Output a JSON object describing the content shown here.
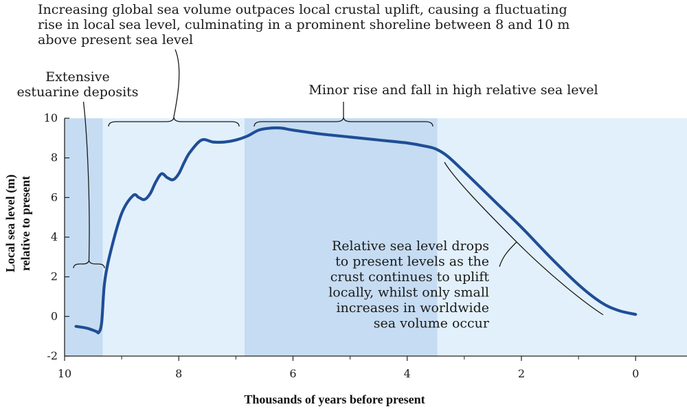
{
  "colors": {
    "band_light": "#e2f0fb",
    "band_dark": "#c6dcf2",
    "curve": "#1f4e96",
    "axis": "#222222",
    "text": "#1a1a1a"
  },
  "chart_data": {
    "type": "line",
    "xlabel": "Thousands of years before present",
    "ylabel_lines": [
      "Local sea level (m)",
      "relative to present"
    ],
    "xlim": [
      10,
      -0.9
    ],
    "ylim": [
      -2,
      10
    ],
    "x_reversed": true,
    "x_ticks": [
      10,
      8,
      6,
      4,
      2,
      0
    ],
    "x_tick_labels": [
      "10",
      "8",
      "6",
      "4",
      "2",
      "0"
    ],
    "y_ticks": [
      -2,
      0,
      2,
      4,
      6,
      8,
      10
    ],
    "y_tick_labels": [
      "-2",
      "0",
      "2",
      "4",
      "6",
      "8",
      "10"
    ],
    "bands": [
      {
        "from": 10,
        "to": 9.33,
        "shade": "dark"
      },
      {
        "from": 9.33,
        "to": 6.85,
        "shade": "light"
      },
      {
        "from": 6.85,
        "to": 3.47,
        "shade": "dark"
      },
      {
        "from": 3.47,
        "to": -0.9,
        "shade": "light"
      }
    ],
    "series": [
      {
        "x": [
          9.8,
          9.6,
          9.45,
          9.4,
          9.35,
          9.3,
          9.2,
          9.0,
          8.8,
          8.7,
          8.6,
          8.5,
          8.4,
          8.3,
          8.2,
          8.1,
          8.0,
          7.9,
          7.8,
          7.6,
          7.4,
          7.2,
          7.0,
          6.8,
          6.6,
          6.4,
          6.2,
          6.0,
          5.5,
          5.0,
          4.5,
          4.0,
          3.7,
          3.5,
          3.3,
          3.0,
          2.5,
          2.0,
          1.5,
          1.0,
          0.6,
          0.3,
          0.0
        ],
        "y": [
          -0.5,
          -0.6,
          -0.75,
          -0.8,
          -0.3,
          1.7,
          3.2,
          5.2,
          6.1,
          6.0,
          5.9,
          6.2,
          6.8,
          7.2,
          7.0,
          6.9,
          7.2,
          7.8,
          8.3,
          8.9,
          8.8,
          8.8,
          8.9,
          9.1,
          9.4,
          9.5,
          9.5,
          9.4,
          9.2,
          9.05,
          8.9,
          8.75,
          8.6,
          8.45,
          8.1,
          7.3,
          5.9,
          4.5,
          3.0,
          1.6,
          0.7,
          0.3,
          0.1
        ]
      }
    ],
    "annotations": [
      {
        "lines": [
          "Increasing global sea volume outpaces local crustal uplift, causing a fluctuating",
          "rise in local sea level, culminating in a prominent shoreline between 8 and 10 m",
          "above present sea level"
        ]
      },
      {
        "lines": [
          "Extensive",
          "estuarine deposits"
        ]
      },
      {
        "lines": [
          "Minor rise and fall in high relative sea level"
        ]
      },
      {
        "lines": [
          "Relative sea level drops",
          "to present levels as the",
          "crust continues to uplift",
          "locally, whilst only small",
          "increases in worldwide",
          "sea volume occur"
        ]
      }
    ]
  }
}
